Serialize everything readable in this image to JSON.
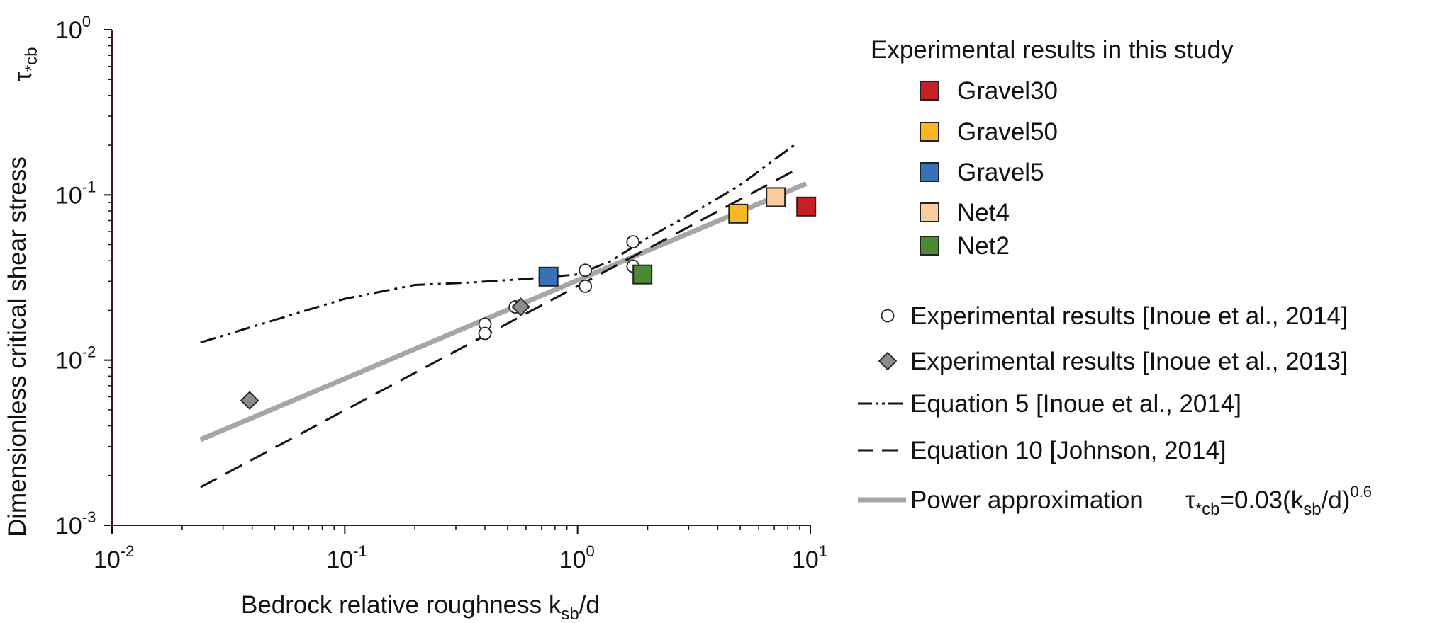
{
  "chart_data": {
    "type": "scatter",
    "x_scale": "log",
    "y_scale": "log",
    "xlim": [
      0.01,
      10
    ],
    "ylim": [
      0.001,
      1
    ],
    "grid": false,
    "legend_position": "right",
    "x_ticks": [
      {
        "base": "10",
        "exp": "-2"
      },
      {
        "base": "10",
        "exp": "-1"
      },
      {
        "base": "10",
        "exp": "0"
      },
      {
        "base": "10",
        "exp": "1"
      }
    ],
    "y_ticks": [
      {
        "base": "10",
        "exp": "-3"
      },
      {
        "base": "10",
        "exp": "-2"
      },
      {
        "base": "10",
        "exp": "-1"
      },
      {
        "base": "10",
        "exp": "0"
      }
    ],
    "xlabel": {
      "main": "Bedrock relative roughness k",
      "sub": "sb",
      "tail": "/d"
    },
    "ylabel": "Dimensionless critical shear stress",
    "ylabel_symbol": {
      "main": "τ",
      "sub": "*cb"
    },
    "legend_heading": "Experimental results in this study",
    "study_series": [
      {
        "name": "Gravel30",
        "color": "#c62026",
        "points": [
          [
            9.6,
            0.085
          ]
        ]
      },
      {
        "name": "Gravel50",
        "color": "#f5b722",
        "points": [
          [
            4.9,
            0.077
          ]
        ]
      },
      {
        "name": "Gravel5",
        "color": "#3a70b8",
        "points": [
          [
            0.75,
            0.032
          ]
        ]
      },
      {
        "name": "Net4",
        "color": "#f8cba0",
        "points": [
          [
            7.1,
            0.097
          ]
        ]
      },
      {
        "name": "Net2",
        "color": "#4a8a34",
        "points": [
          [
            1.9,
            0.033
          ]
        ]
      }
    ],
    "reference_series": [
      {
        "name": "Experimental results [Inoue et al., 2014]",
        "marker": "open-circle",
        "points": [
          [
            0.4,
            0.0165
          ],
          [
            0.4,
            0.0145
          ],
          [
            0.54,
            0.021
          ],
          [
            1.08,
            0.035
          ],
          [
            1.08,
            0.028
          ],
          [
            1.73,
            0.052
          ],
          [
            1.73,
            0.037
          ]
        ]
      },
      {
        "name": "Experimental results [Inoue et al., 2013]",
        "marker": "gray-diamond",
        "color": "#8c8c8c",
        "points": [
          [
            0.039,
            0.0057
          ],
          [
            0.57,
            0.021
          ]
        ]
      }
    ],
    "line_series": [
      {
        "name": "Equation 5 [Inoue et al., 2014]",
        "style": "dash-dot-dot",
        "color": "#111111",
        "points": [
          [
            0.024,
            0.0128
          ],
          [
            0.05,
            0.0175
          ],
          [
            0.1,
            0.0235
          ],
          [
            0.2,
            0.0285
          ],
          [
            0.35,
            0.0295
          ],
          [
            0.6,
            0.031
          ],
          [
            1.0,
            0.033
          ],
          [
            1.4,
            0.04
          ],
          [
            2.0,
            0.055
          ],
          [
            3.0,
            0.075
          ],
          [
            5.0,
            0.115
          ],
          [
            8.5,
            0.2
          ]
        ]
      },
      {
        "name": "Equation 10 [Johnson, 2014]",
        "style": "dashed",
        "color": "#111111",
        "points": [
          [
            0.024,
            0.0017
          ],
          [
            8.5,
            0.14
          ]
        ]
      },
      {
        "name": "Power approximation",
        "style": "solid-thick",
        "color": "#a6a6a6",
        "formula": "0.03(k/d)^0.6",
        "points": [
          [
            0.024,
            0.0033
          ],
          [
            9.6,
            0.117
          ]
        ]
      }
    ],
    "formula_label": {
      "tau": "τ",
      "tau_sub": "*cb",
      "eq": "=0.03(k",
      "k_sub": "sb",
      "rest": "/d)",
      "exp": "0.6"
    }
  }
}
